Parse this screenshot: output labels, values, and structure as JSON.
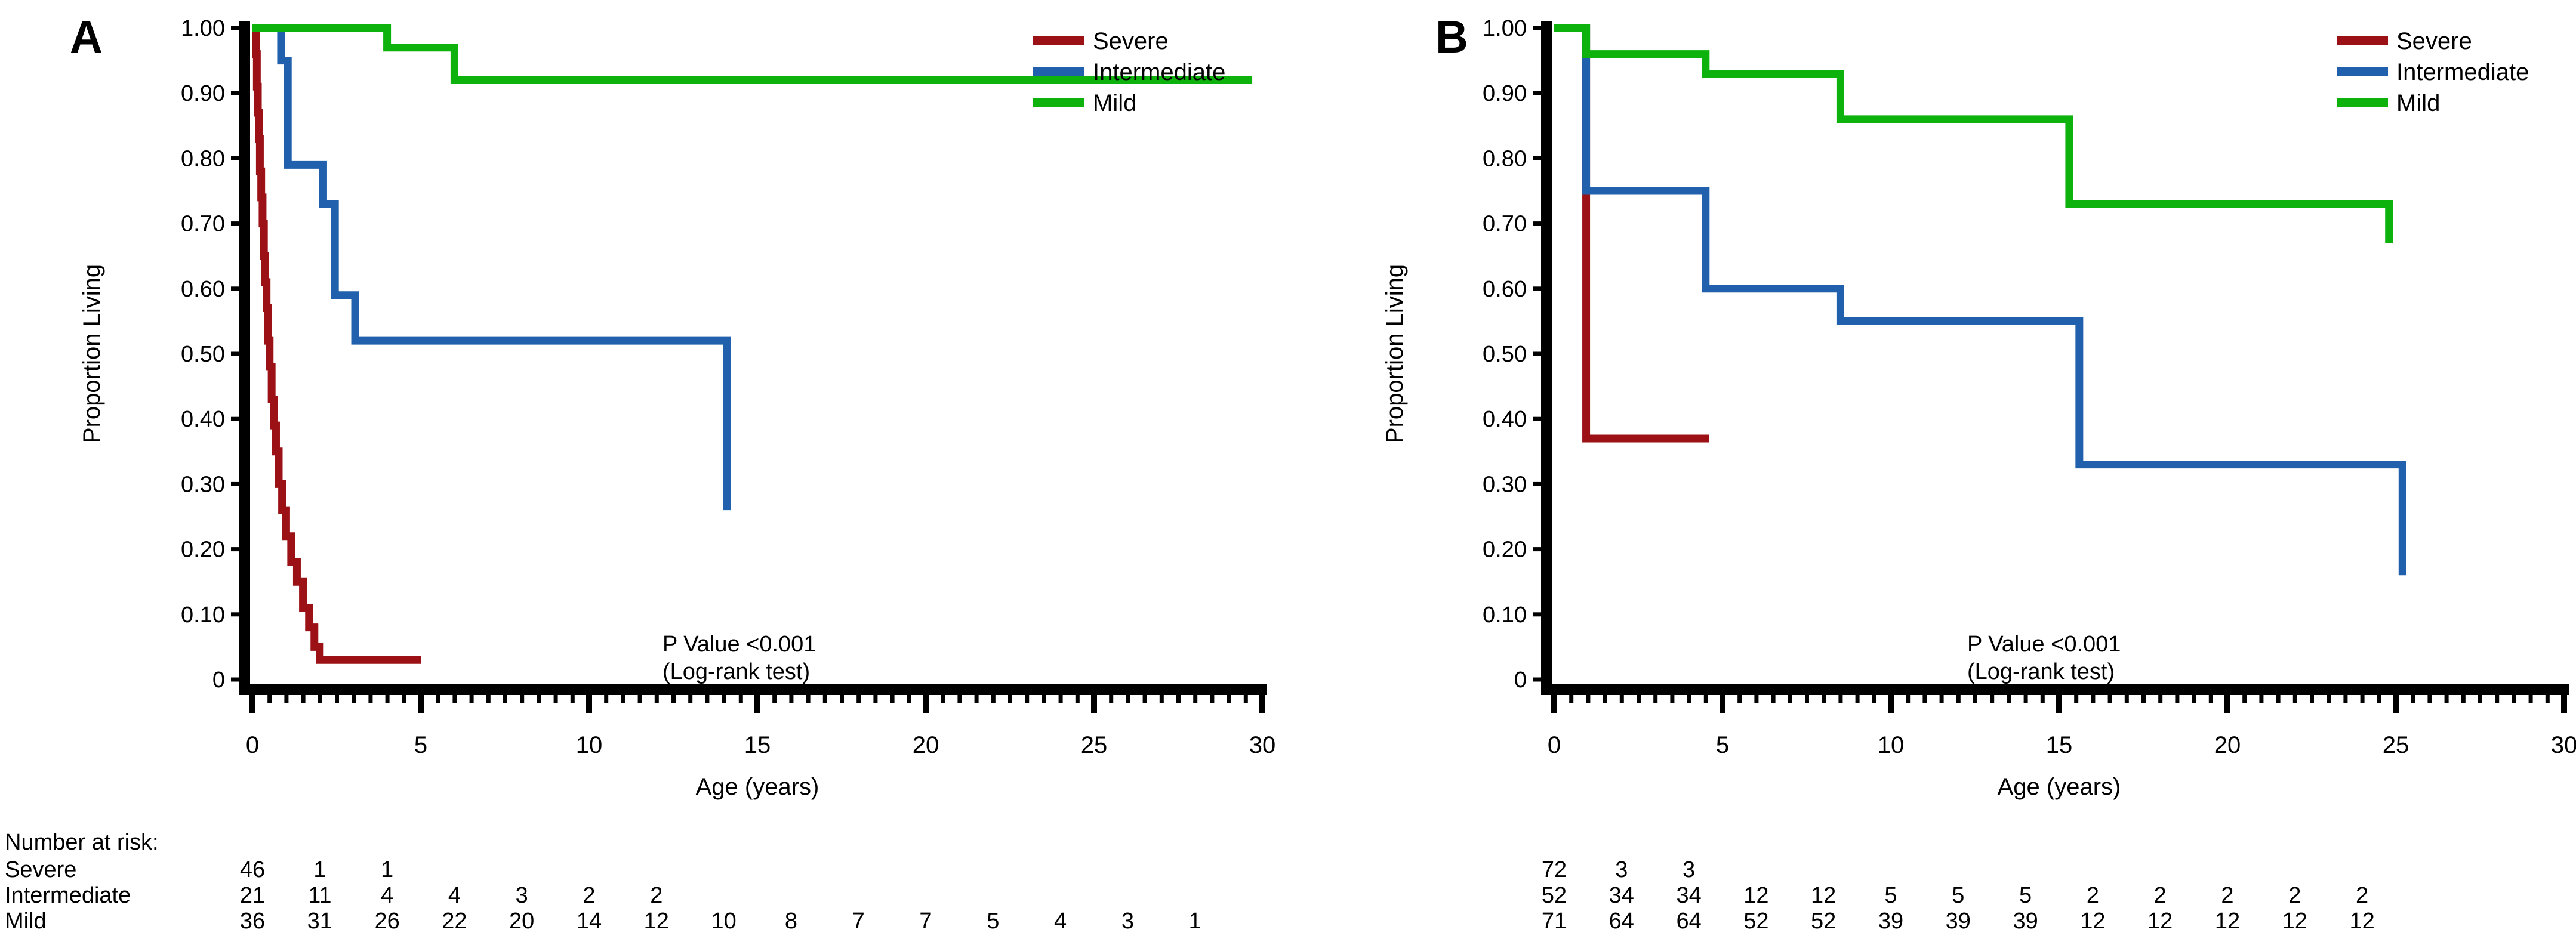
{
  "figure": {
    "description": "Two-panel Kaplan-Meier survival figure",
    "background": "#ffffff",
    "text_color": "#000000"
  },
  "chart_data": [
    {
      "panel": "A",
      "type": "line",
      "subtype": "kaplan-meier-step",
      "title": "A",
      "xlabel": "Age (years)",
      "ylabel": "Proportion Living",
      "xlim": [
        0,
        30
      ],
      "ylim": [
        0,
        1.0
      ],
      "xticks": [
        0,
        5,
        10,
        15,
        20,
        25,
        30
      ],
      "ytick_labels": [
        "1.00",
        "0.90",
        "0.80",
        "0.70",
        "0.60",
        "0.50",
        "0.40",
        "0.30",
        "0.20",
        "0.10",
        "0"
      ],
      "ytick_values": [
        1.0,
        0.9,
        0.8,
        0.7,
        0.6,
        0.5,
        0.4,
        0.3,
        0.2,
        0.1,
        0
      ],
      "grid": false,
      "legend_position": "top-right",
      "annotation_lines": [
        "P Value <0.001",
        "(Log-rank test)"
      ],
      "series": [
        {
          "name": "Severe",
          "color": "#9b1116",
          "end": 5.0,
          "steps": [
            [
              0,
              1.0
            ],
            [
              0.1,
              0.96
            ],
            [
              0.13,
              0.91
            ],
            [
              0.16,
              0.87
            ],
            [
              0.19,
              0.83
            ],
            [
              0.22,
              0.78
            ],
            [
              0.26,
              0.74
            ],
            [
              0.3,
              0.7
            ],
            [
              0.34,
              0.65
            ],
            [
              0.38,
              0.61
            ],
            [
              0.42,
              0.57
            ],
            [
              0.46,
              0.52
            ],
            [
              0.51,
              0.48
            ],
            [
              0.57,
              0.43
            ],
            [
              0.63,
              0.39
            ],
            [
              0.7,
              0.35
            ],
            [
              0.78,
              0.3
            ],
            [
              0.88,
              0.26
            ],
            [
              1.0,
              0.22
            ],
            [
              1.15,
              0.18
            ],
            [
              1.32,
              0.15
            ],
            [
              1.5,
              0.11
            ],
            [
              1.68,
              0.08
            ],
            [
              1.84,
              0.05
            ],
            [
              2.0,
              0.03
            ]
          ]
        },
        {
          "name": "Intermediate",
          "color": "#2060ac",
          "end": 14.1,
          "steps": [
            [
              0,
              1.0
            ],
            [
              0.85,
              0.95
            ],
            [
              1.05,
              0.79
            ],
            [
              2.1,
              0.73
            ],
            [
              2.45,
              0.59
            ],
            [
              3.05,
              0.52
            ],
            [
              14.1,
              0.26
            ]
          ]
        },
        {
          "name": "Mild",
          "color": "#0db20d",
          "end": 29.7,
          "steps": [
            [
              0,
              1.0
            ],
            [
              4.0,
              0.97
            ],
            [
              6.0,
              0.92
            ]
          ]
        }
      ],
      "at_risk": {
        "title": "Number at risk:",
        "show_row_labels": true,
        "times": [
          0,
          2,
          4,
          6,
          8,
          10,
          12,
          14,
          16,
          18,
          20,
          22,
          24,
          26,
          28
        ],
        "rows": [
          {
            "label": "Severe",
            "values": [
              46,
              1,
              1
            ]
          },
          {
            "label": "Intermediate",
            "values": [
              21,
              11,
              4,
              4,
              3,
              2,
              2
            ]
          },
          {
            "label": "Mild",
            "values": [
              36,
              31,
              26,
              22,
              20,
              14,
              12,
              10,
              8,
              7,
              7,
              5,
              4,
              3,
              1
            ]
          }
        ]
      }
    },
    {
      "panel": "B",
      "type": "line",
      "subtype": "kaplan-meier-step",
      "title": "B",
      "xlabel": "Age (years)",
      "ylabel": "Proportion Living",
      "xlim": [
        0,
        30
      ],
      "ylim": [
        0,
        1.0
      ],
      "xticks": [
        0,
        5,
        10,
        15,
        20,
        25,
        30
      ],
      "ytick_labels": [
        "1.00",
        "0.90",
        "0.80",
        "0.70",
        "0.60",
        "0.50",
        "0.40",
        "0.30",
        "0.20",
        "0.10",
        "0"
      ],
      "ytick_values": [
        1.0,
        0.9,
        0.8,
        0.7,
        0.6,
        0.5,
        0.4,
        0.3,
        0.2,
        0.1,
        0
      ],
      "grid": false,
      "legend_position": "top-right",
      "annotation_lines": [
        "P Value <0.001",
        "(Log-rank test)"
      ],
      "series": [
        {
          "name": "Severe",
          "color": "#9b1116",
          "end": 4.6,
          "steps": [
            [
              0,
              1.0
            ],
            [
              0.95,
              0.37
            ]
          ]
        },
        {
          "name": "Intermediate",
          "color": "#2060ac",
          "end": 25.2,
          "steps": [
            [
              0,
              1.0
            ],
            [
              0.95,
              0.75
            ],
            [
              4.5,
              0.6
            ],
            [
              8.5,
              0.55
            ],
            [
              15.6,
              0.33
            ],
            [
              25.2,
              0.16
            ]
          ]
        },
        {
          "name": "Mild",
          "color": "#0db20d",
          "end": 24.8,
          "steps": [
            [
              0,
              1.0
            ],
            [
              0.95,
              0.96
            ],
            [
              4.5,
              0.93
            ],
            [
              8.5,
              0.86
            ],
            [
              15.3,
              0.73
            ],
            [
              24.8,
              0.67
            ]
          ]
        }
      ],
      "at_risk": {
        "title": "",
        "show_row_labels": false,
        "times": [
          0,
          2,
          4,
          6,
          8,
          10,
          12,
          14,
          16,
          18,
          20,
          22,
          24
        ],
        "rows": [
          {
            "label": "Severe",
            "values": [
              72,
              3,
              3
            ]
          },
          {
            "label": "Intermediate",
            "values": [
              52,
              34,
              34,
              12,
              12,
              5,
              5,
              5,
              2,
              2,
              2,
              2,
              2
            ]
          },
          {
            "label": "Mild",
            "values": [
              71,
              64,
              64,
              52,
              52,
              39,
              39,
              39,
              12,
              12,
              12,
              12,
              12
            ]
          }
        ]
      }
    }
  ],
  "legend": {
    "entries": [
      {
        "label": "Severe",
        "color": "#9b1116"
      },
      {
        "label": "Intermediate",
        "color": "#2060ac"
      },
      {
        "label": "Mild",
        "color": "#0db20d"
      }
    ]
  }
}
